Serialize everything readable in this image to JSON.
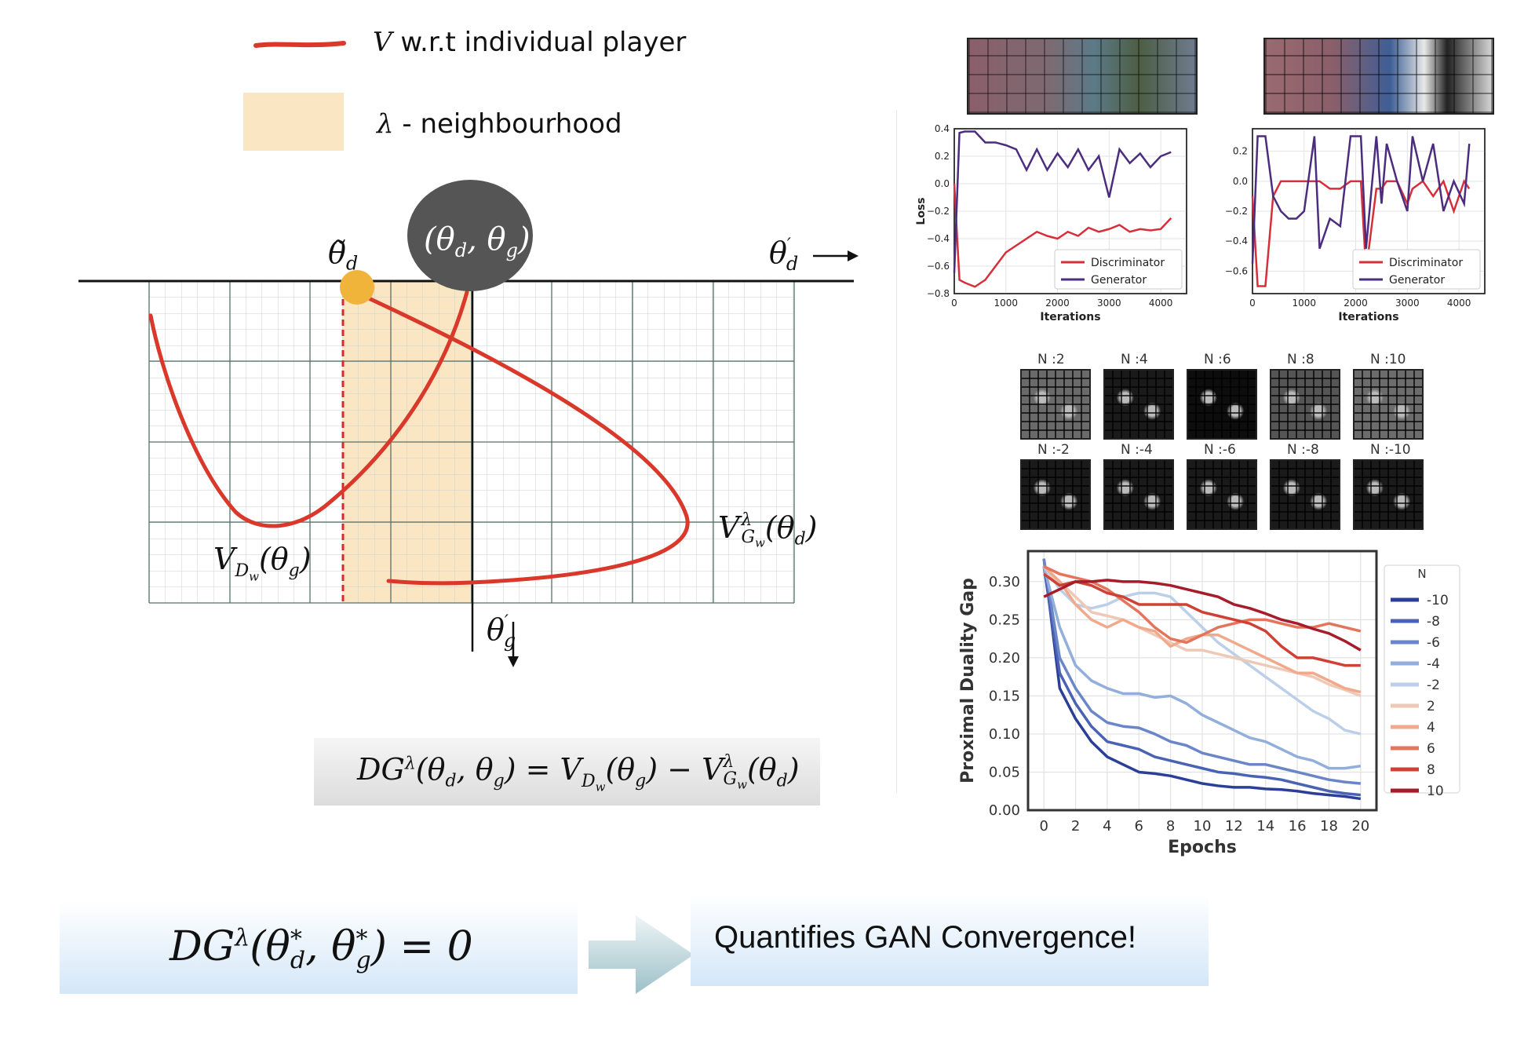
{
  "legend": {
    "curve_symbol": "V",
    "curve_label": " w.r.t individual player",
    "region_symbol": "λ",
    "region_label": " - neighbourhood"
  },
  "diagram": {
    "point_tilde_label": "θ̃",
    "point_tilde_sub": "d",
    "point_label": "(θ_d, θ_g)",
    "axis_x_label": "θ′_d",
    "axis_y_label": "θ′_g",
    "curve_d_label": "V_{D_w}(θ_g)",
    "curve_g_label": "V^λ_{G_w}(θ_d)",
    "equation": "DG^λ(θ_d, θ_g) = V_{D_w}(θ_g) − V^λ_{G_w}(θ_d)",
    "colors": {
      "curve": "#d9382a",
      "neighbourhood": "#fbe6c4",
      "point": "#f0b43a",
      "dark_circle": "#555555",
      "grid": "#56706a"
    }
  },
  "bottom": {
    "equation": "DG^λ(θ*_d, θ*_g) = 0",
    "statement": "Quantifies GAN Convergence!"
  },
  "sample_grids": {
    "top_labels": [
      "N :2",
      "N :4",
      "N :6",
      "N :8",
      "N :10"
    ],
    "bottom_labels": [
      "N :-2",
      "N :-4",
      "N :-6",
      "N :-8",
      "N :-10"
    ]
  },
  "chart_data": [
    {
      "type": "line",
      "xlabel": "Iterations",
      "ylabel": "Loss",
      "xlim": [
        0,
        4500
      ],
      "ylim": [
        -0.8,
        0.4
      ],
      "x_ticks": [
        "0",
        "1000",
        "2000",
        "3000",
        "4000"
      ],
      "y_ticks": [
        "0.4",
        "0.2",
        "0.0",
        "−0.2",
        "−0.4",
        "−0.6",
        "−0.8"
      ],
      "legend_position": "bottom-right",
      "x": [
        0,
        100,
        200,
        400,
        600,
        800,
        1000,
        1200,
        1400,
        1600,
        1800,
        2000,
        2200,
        2400,
        2600,
        2800,
        3000,
        3200,
        3400,
        3600,
        3800,
        4000,
        4200
      ],
      "series": [
        {
          "name": "Discriminator",
          "color": "#d62f3a",
          "values": [
            0.0,
            -0.7,
            -0.72,
            -0.75,
            -0.7,
            -0.6,
            -0.5,
            -0.45,
            -0.4,
            -0.35,
            -0.38,
            -0.4,
            -0.35,
            -0.38,
            -0.32,
            -0.35,
            -0.33,
            -0.3,
            -0.35,
            -0.33,
            -0.34,
            -0.33,
            -0.25
          ]
        },
        {
          "name": "Generator",
          "color": "#4b2c7e",
          "values": [
            -0.65,
            0.37,
            0.38,
            0.38,
            0.3,
            0.3,
            0.28,
            0.25,
            0.1,
            0.25,
            0.1,
            0.22,
            0.12,
            0.25,
            0.1,
            0.2,
            -0.1,
            0.25,
            0.15,
            0.22,
            0.12,
            0.2,
            0.23
          ]
        }
      ]
    },
    {
      "type": "line",
      "xlabel": "Iterations",
      "ylabel": "",
      "xlim": [
        0,
        4500
      ],
      "ylim": [
        -0.75,
        0.35
      ],
      "x_ticks": [
        "0",
        "1000",
        "2000",
        "3000",
        "4000"
      ],
      "y_ticks": [
        "0.2",
        "0.0",
        "−0.2",
        "−0.4",
        "−0.6"
      ],
      "legend_position": "bottom-right",
      "x": [
        0,
        100,
        250,
        400,
        550,
        700,
        850,
        1000,
        1200,
        1300,
        1500,
        1700,
        1900,
        2100,
        2200,
        2400,
        2500,
        2600,
        2800,
        3000,
        3100,
        3300,
        3500,
        3700,
        3900,
        4100,
        4200
      ],
      "series": [
        {
          "name": "Discriminator",
          "color": "#d62f3a",
          "values": [
            -0.1,
            -0.7,
            -0.7,
            -0.1,
            0.0,
            0.0,
            0.0,
            0.0,
            0.0,
            0.0,
            -0.05,
            -0.05,
            0.0,
            0.0,
            -0.6,
            -0.05,
            -0.05,
            0.0,
            0.0,
            -0.15,
            -0.05,
            0.0,
            -0.1,
            0.0,
            -0.2,
            0.0,
            -0.05
          ]
        },
        {
          "name": "Generator",
          "color": "#4b2c7e",
          "values": [
            -0.55,
            0.3,
            0.3,
            -0.1,
            -0.2,
            -0.25,
            -0.25,
            -0.2,
            0.3,
            -0.45,
            -0.25,
            -0.3,
            0.3,
            0.3,
            -0.45,
            0.3,
            -0.15,
            0.25,
            0.0,
            -0.2,
            0.3,
            0.0,
            0.25,
            -0.2,
            0.0,
            -0.15,
            0.25
          ]
        }
      ]
    },
    {
      "type": "line",
      "xlabel": "Epochs",
      "ylabel": "Proximal Duality Gap",
      "xlim": [
        -1,
        21
      ],
      "ylim": [
        0.0,
        0.34
      ],
      "x_ticks": [
        "0",
        "2",
        "4",
        "6",
        "8",
        "10",
        "12",
        "14",
        "16",
        "18",
        "20"
      ],
      "y_ticks": [
        "0.00",
        "0.05",
        "0.10",
        "0.15",
        "0.20",
        "0.25",
        "0.30"
      ],
      "legend_title": "N",
      "legend_position": "right",
      "x": [
        0,
        1,
        2,
        3,
        4,
        5,
        6,
        7,
        8,
        9,
        10,
        11,
        12,
        13,
        14,
        15,
        16,
        17,
        18,
        19,
        20
      ],
      "series": [
        {
          "name": "-10",
          "color": "#2c3f98",
          "values": [
            0.33,
            0.16,
            0.12,
            0.09,
            0.07,
            0.06,
            0.05,
            0.048,
            0.045,
            0.04,
            0.035,
            0.032,
            0.03,
            0.03,
            0.028,
            0.027,
            0.025,
            0.022,
            0.02,
            0.018,
            0.015
          ]
        },
        {
          "name": "-8",
          "color": "#4a62b4",
          "values": [
            0.32,
            0.18,
            0.14,
            0.11,
            0.09,
            0.085,
            0.08,
            0.07,
            0.065,
            0.06,
            0.055,
            0.05,
            0.048,
            0.045,
            0.043,
            0.04,
            0.035,
            0.03,
            0.025,
            0.022,
            0.02
          ]
        },
        {
          "name": "-6",
          "color": "#6b86c8",
          "values": [
            0.33,
            0.2,
            0.16,
            0.13,
            0.115,
            0.11,
            0.108,
            0.1,
            0.09,
            0.085,
            0.075,
            0.07,
            0.065,
            0.06,
            0.06,
            0.055,
            0.05,
            0.045,
            0.04,
            0.037,
            0.035
          ]
        },
        {
          "name": "-4",
          "color": "#92aedb",
          "values": [
            0.32,
            0.24,
            0.19,
            0.17,
            0.16,
            0.153,
            0.153,
            0.148,
            0.15,
            0.14,
            0.125,
            0.115,
            0.105,
            0.095,
            0.09,
            0.08,
            0.07,
            0.065,
            0.055,
            0.055,
            0.058
          ]
        },
        {
          "name": "-2",
          "color": "#bccfe9",
          "values": [
            0.32,
            0.29,
            0.27,
            0.265,
            0.27,
            0.28,
            0.285,
            0.285,
            0.28,
            0.26,
            0.24,
            0.22,
            0.205,
            0.19,
            0.175,
            0.16,
            0.145,
            0.13,
            0.12,
            0.105,
            0.1
          ]
        },
        {
          "name": "2",
          "color": "#edc9b6",
          "values": [
            0.31,
            0.3,
            0.28,
            0.26,
            0.255,
            0.25,
            0.24,
            0.23,
            0.22,
            0.21,
            0.21,
            0.205,
            0.2,
            0.195,
            0.19,
            0.185,
            0.18,
            0.175,
            0.165,
            0.158,
            0.15
          ]
        },
        {
          "name": "4",
          "color": "#f2a98b",
          "values": [
            0.32,
            0.3,
            0.27,
            0.25,
            0.24,
            0.25,
            0.24,
            0.235,
            0.215,
            0.225,
            0.23,
            0.23,
            0.22,
            0.21,
            0.2,
            0.19,
            0.18,
            0.18,
            0.17,
            0.16,
            0.155
          ]
        },
        {
          "name": "6",
          "color": "#e4755c",
          "values": [
            0.32,
            0.31,
            0.305,
            0.3,
            0.29,
            0.275,
            0.26,
            0.24,
            0.225,
            0.22,
            0.23,
            0.24,
            0.245,
            0.25,
            0.25,
            0.245,
            0.24,
            0.24,
            0.245,
            0.24,
            0.235
          ]
        },
        {
          "name": "8",
          "color": "#cf4035",
          "values": [
            0.31,
            0.295,
            0.3,
            0.295,
            0.285,
            0.28,
            0.27,
            0.27,
            0.27,
            0.27,
            0.26,
            0.255,
            0.25,
            0.245,
            0.235,
            0.215,
            0.2,
            0.2,
            0.195,
            0.19,
            0.19
          ]
        },
        {
          "name": "10",
          "color": "#a61c2a",
          "values": [
            0.28,
            0.29,
            0.3,
            0.3,
            0.302,
            0.3,
            0.3,
            0.298,
            0.295,
            0.29,
            0.285,
            0.28,
            0.27,
            0.265,
            0.258,
            0.25,
            0.245,
            0.238,
            0.232,
            0.222,
            0.21
          ]
        }
      ]
    }
  ]
}
